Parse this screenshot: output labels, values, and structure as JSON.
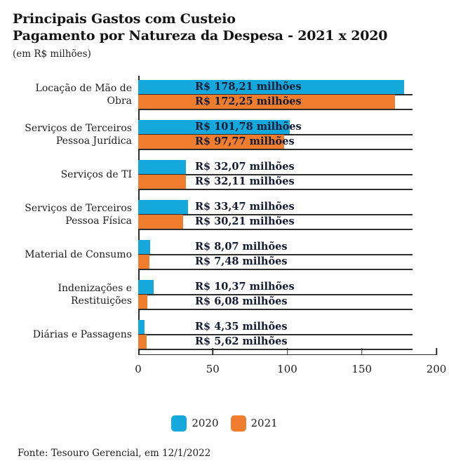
{
  "title": {
    "line1": "Principais Gastos com Custeio",
    "line2": "Pagamento por Natureza da Despesa - 2021 x 2020",
    "subtitle": "(em R$ milhões)"
  },
  "chart_data": {
    "type": "bar",
    "orientation": "horizontal",
    "title": "Principais Gastos com Custeio — Pagamento por Natureza da Despesa - 2021 x 2020",
    "unit": "R$ milhões",
    "categories": [
      "Locação de Mão de Obra",
      "Serviços de Terceiros\nPessoa Jurídica",
      "Serviços de TI",
      "Serviços de Terceiros\nPessoa Física",
      "Material de Consumo",
      "Indenizações e Restituições",
      "Diárias e Passagens"
    ],
    "series": [
      {
        "name": "2020",
        "color": "#14A8DC",
        "values": [
          178.21,
          101.78,
          32.07,
          33.47,
          8.07,
          10.37,
          4.35
        ],
        "labels": [
          "R$ 178,21 milhões",
          "R$ 101,78 milhões",
          "R$ 32,07 milhões",
          "R$ 33,47 milhões",
          "R$ 8,07 milhões",
          "R$ 10,37 milhões",
          "R$ 4,35 milhões"
        ]
      },
      {
        "name": "2021",
        "color": "#F07D2D",
        "values": [
          172.25,
          97.77,
          32.11,
          30.21,
          7.48,
          6.08,
          5.62
        ],
        "labels": [
          "R$ 172,25 milhões",
          "R$ 97,77 milhões",
          "R$ 32,11 milhões",
          "R$ 30,21 milhões",
          "R$ 7,48 milhões",
          "R$ 6,08 milhões",
          "R$ 5,62 milhões"
        ]
      }
    ],
    "xlim": [
      0,
      200
    ],
    "x_ticks": [
      0,
      50,
      100,
      150,
      200
    ],
    "grid": "row-underlines",
    "legend_position": "bottom",
    "value_label_color": "#141b33",
    "axis_color": "#2e2e2e"
  },
  "footer": {
    "source": "Fonte: Tesouro Gerencial, em 12/1/2022"
  }
}
